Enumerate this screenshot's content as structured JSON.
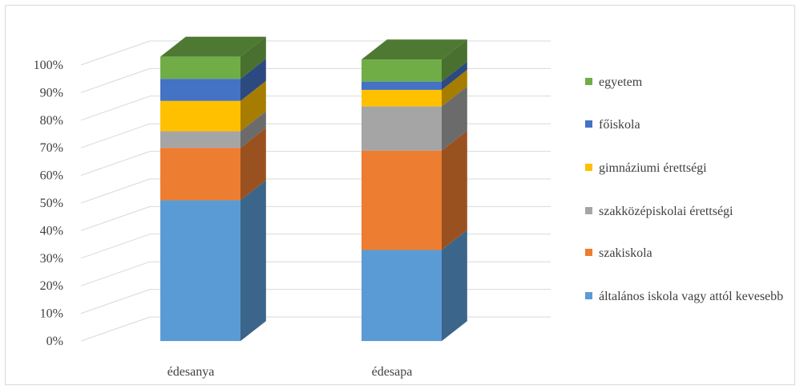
{
  "chart_data": {
    "type": "bar",
    "stacked": true,
    "percent": true,
    "three_d": true,
    "categories": [
      "édesanya",
      "édesapa"
    ],
    "series": [
      {
        "name": "általános iskola vagy attól kevesebb",
        "values": [
          51,
          33
        ],
        "color": "#5b9bd5"
      },
      {
        "name": "szakiskola",
        "values": [
          19,
          36
        ],
        "color": "#ed7d31"
      },
      {
        "name": "szakközépiskolai érettségi",
        "values": [
          6,
          16
        ],
        "color": "#a5a5a5"
      },
      {
        "name": "gimnáziumi érettségi",
        "values": [
          11,
          6
        ],
        "color": "#ffc000"
      },
      {
        "name": "főiskola",
        "values": [
          8,
          3
        ],
        "color": "#4472c4"
      },
      {
        "name": "egyetem",
        "values": [
          8,
          8
        ],
        "color": "#70ad47"
      }
    ],
    "y_ticks": [
      "0%",
      "10%",
      "20%",
      "30%",
      "40%",
      "50%",
      "60%",
      "70%",
      "80%",
      "90%",
      "100%"
    ],
    "ylim": [
      0,
      100
    ],
    "grid": true,
    "legend_position": "right"
  }
}
